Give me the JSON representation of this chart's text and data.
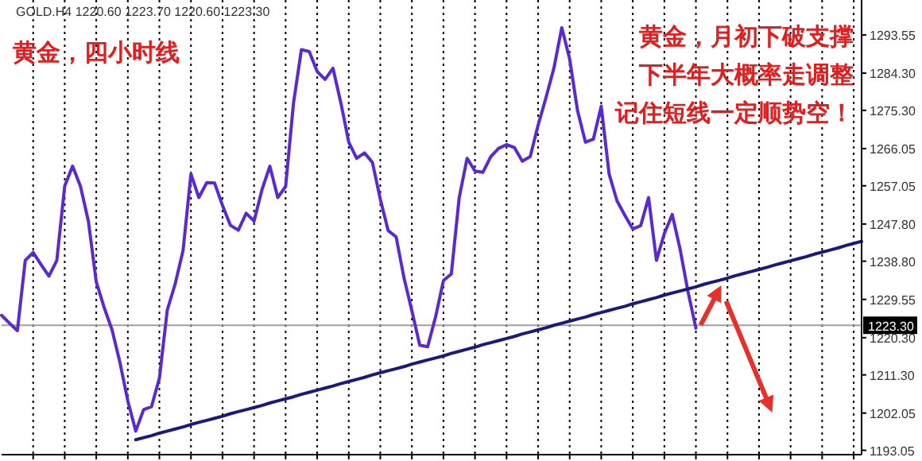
{
  "chart_data": {
    "type": "line",
    "title": "黄金，四小时线",
    "annotations": [
      "GOLD.H4 1220.60 1223.70 1220.60 1223.30",
      "黄金，月初下破支撑",
      "下半年大概率走调整",
      "记住短线一定顺势空！"
    ],
    "categories": [
      null,
      null,
      null,
      null,
      null,
      null,
      null,
      null,
      null,
      null,
      null,
      null,
      null,
      null,
      null,
      null,
      null,
      null,
      null,
      null,
      null,
      null,
      null,
      null,
      null,
      null,
      null,
      null,
      null,
      null,
      null,
      null,
      null,
      null,
      null,
      null,
      null,
      null,
      null,
      null,
      null,
      null,
      null,
      null,
      null,
      null,
      null,
      null,
      null,
      null,
      null,
      null,
      null,
      null,
      null,
      null,
      null,
      null,
      null,
      null,
      null,
      null,
      null,
      null,
      null,
      null,
      null,
      null,
      null,
      null,
      null,
      null,
      null,
      null,
      null,
      null,
      null,
      null,
      null,
      null,
      null,
      null,
      null,
      null,
      null,
      null,
      null,
      null,
      null,
      null,
      null,
      null,
      null,
      null,
      null,
      null,
      null,
      null,
      null,
      null,
      null,
      null,
      null,
      null,
      null,
      null,
      null,
      null,
      null,
      null
    ],
    "series": [
      {
        "color": "#5a2ad0",
        "values": [
          1225.7,
          1223.8,
          1222.0,
          1239.0,
          1240.9,
          1238.0,
          1235.2,
          1239.0,
          1257.0,
          1261.8,
          1256.9,
          1248.5,
          1233.8,
          1227.6,
          1222.2,
          1214.3,
          1205.0,
          1197.7,
          1202.9,
          1203.6,
          1210.5,
          1227.0,
          1233.3,
          1241.4,
          1259.9,
          1254.2,
          1257.8,
          1257.7,
          1252.3,
          1247.5,
          1246.3,
          1250.4,
          1248.5,
          1256.1,
          1261.8,
          1254.2,
          1256.9,
          1277.1,
          1290.0,
          1289.5,
          1284.7,
          1282.8,
          1285.5,
          1277.1,
          1267.6,
          1263.7,
          1265.0,
          1262.7,
          1253.8,
          1246.2,
          1244.7,
          1234.8,
          1226.8,
          1218.5,
          1218.1,
          1225.3,
          1234.1,
          1235.7,
          1254.2,
          1263.7,
          1260.6,
          1260.3,
          1264.1,
          1266.1,
          1267.0,
          1266.3,
          1263.0,
          1264.1,
          1271.7,
          1278.4,
          1285.5,
          1295.3,
          1287.7,
          1275.2,
          1267.6,
          1268.3,
          1276.3,
          1259.9,
          1253.4,
          1249.9,
          1246.6,
          1247.4,
          1254.2,
          1239.0,
          1245.5,
          1250.1,
          1241.7,
          1231.4,
          1222.6,
          null,
          null,
          null,
          null,
          null,
          null,
          null,
          null,
          null,
          null,
          null,
          null,
          null,
          null,
          null,
          null,
          null,
          null,
          null,
          null,
          null
        ]
      },
      {
        "type": "line",
        "color": "#1a1a7a",
        "values": [
          null,
          null,
          null,
          null,
          null,
          null,
          null,
          null,
          null,
          null,
          null,
          null,
          null,
          null,
          null,
          null,
          null,
          1195.6,
          1196.1,
          1196.6,
          1197.2,
          1197.7,
          1198.2,
          1198.7,
          1199.3,
          1199.8,
          1200.3,
          1200.8,
          1201.3,
          1201.9,
          1202.4,
          1202.9,
          1203.4,
          1203.9,
          1204.5,
          1205.0,
          1205.5,
          1206.0,
          1206.6,
          1207.1,
          1207.6,
          1208.1,
          1208.6,
          1209.2,
          1209.7,
          1210.2,
          1210.7,
          1211.3,
          1211.8,
          1212.3,
          1212.8,
          1213.3,
          1213.9,
          1214.4,
          1214.9,
          1215.4,
          1215.9,
          1216.5,
          1217.0,
          1217.5,
          1218.0,
          1218.6,
          1219.1,
          1219.6,
          1220.1,
          1220.6,
          1221.2,
          1221.7,
          1222.2,
          1222.7,
          1223.3,
          1223.8,
          1224.3,
          1224.8,
          1225.3,
          1225.9,
          1226.4,
          1226.9,
          1227.4,
          1227.9,
          1228.5,
          1229.0,
          1229.5,
          1230.0,
          1230.6,
          1231.1,
          1231.6,
          1232.1,
          1232.6,
          1233.2,
          1233.7,
          1234.2,
          1234.7,
          1235.3,
          1235.8,
          1236.3,
          1236.8,
          1237.3,
          1237.9,
          1238.4,
          1238.9,
          1239.4,
          1239.9,
          1240.5,
          1241.0,
          1241.5,
          1242.0,
          1242.6,
          1243.1,
          1243.6
        ]
      }
    ],
    "ylim": [
      1192,
      1302
    ],
    "yticks": [
      {
        "value": 1293.55,
        "label": "1293.55"
      },
      {
        "value": 1284.3,
        "label": "1284.30"
      },
      {
        "value": 1275.3,
        "label": "1275.30"
      },
      {
        "value": 1266.05,
        "label": "1266.05"
      },
      {
        "value": 1257.05,
        "label": "1257.05"
      },
      {
        "value": 1247.8,
        "label": "1247.80"
      },
      {
        "value": 1238.8,
        "label": "1238.80"
      },
      {
        "value": 1229.55,
        "label": "1229.55"
      },
      {
        "value": 1220.3,
        "label": "1220.30"
      },
      {
        "value": 1211.3,
        "label": "1211.30"
      },
      {
        "value": 1202.05,
        "label": "1202.05"
      },
      {
        "value": 1193.05,
        "label": "1193.05"
      }
    ],
    "grid": "x",
    "ref_lines": [
      {
        "axis": "y",
        "value": 1223.3,
        "label": "1223.30",
        "color": "#a0a0a0"
      }
    ]
  }
}
